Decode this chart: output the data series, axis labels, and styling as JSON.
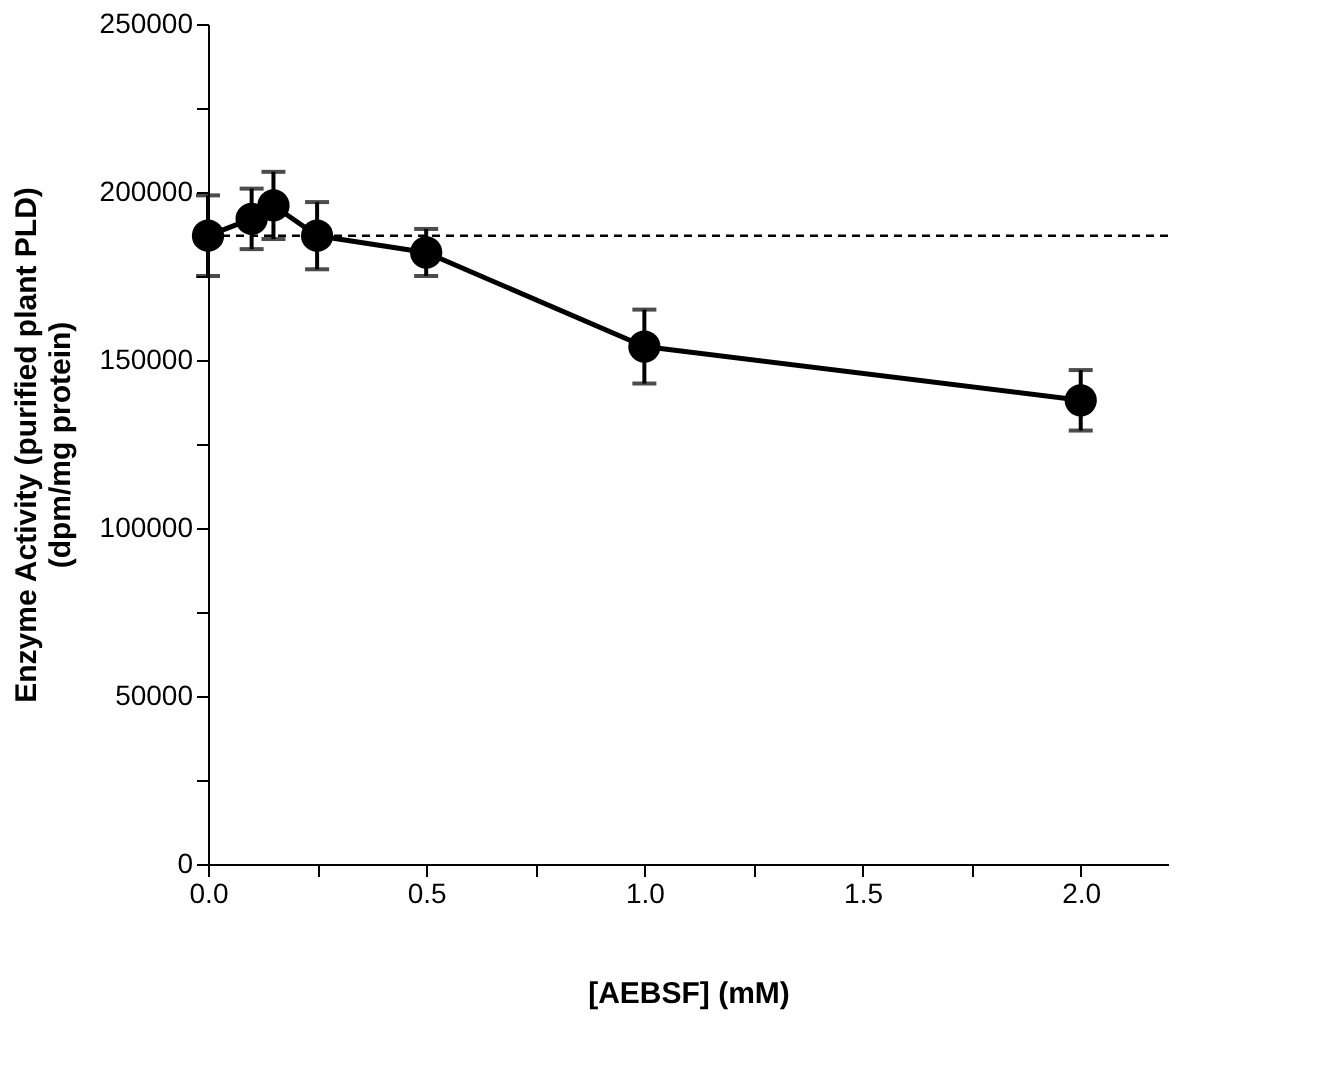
{
  "chart_data": {
    "type": "line",
    "xlabel": "[AEBSF]  (mM)",
    "ylabel": "Enzyme Activity (purified plant PLD)\n(dpm/mg protein)",
    "x": [
      0,
      0.1,
      0.15,
      0.25,
      0.5,
      1.0,
      2.0
    ],
    "series": [
      {
        "color": "#000000",
        "values": [
          187000,
          192000,
          196000,
          187000,
          182000,
          154000,
          138000
        ],
        "errors": [
          12000,
          9000,
          10000,
          10000,
          7000,
          11000,
          9000
        ]
      }
    ],
    "marker": "circle",
    "line_style": "solid",
    "grid": false,
    "xlim": [
      0,
      2.2
    ],
    "xticks": [
      {
        "value": 0,
        "label": "0.0"
      },
      {
        "value": 0.25,
        "label": null
      },
      {
        "value": 0.5,
        "label": "0.5"
      },
      {
        "value": 0.75,
        "label": null
      },
      {
        "value": 1.0,
        "label": "1.0"
      },
      {
        "value": 1.25,
        "label": null
      },
      {
        "value": 1.5,
        "label": "1.5"
      },
      {
        "value": 1.75,
        "label": null
      },
      {
        "value": 2.0,
        "label": "2.0"
      }
    ],
    "ylim": [
      0,
      250000
    ],
    "yticks": [
      0,
      {
        "value": 25000,
        "label": null
      },
      50000,
      {
        "value": 75000,
        "label": null
      },
      100000,
      {
        "value": 125000,
        "label": null
      },
      150000,
      {
        "value": 175000,
        "label": null
      },
      200000,
      {
        "value": 225000,
        "label": null
      },
      250000
    ],
    "ref_lines": [
      {
        "axis": "y",
        "value": 187000,
        "label": null,
        "line_style": "dashed",
        "color": "#000000"
      }
    ]
  }
}
